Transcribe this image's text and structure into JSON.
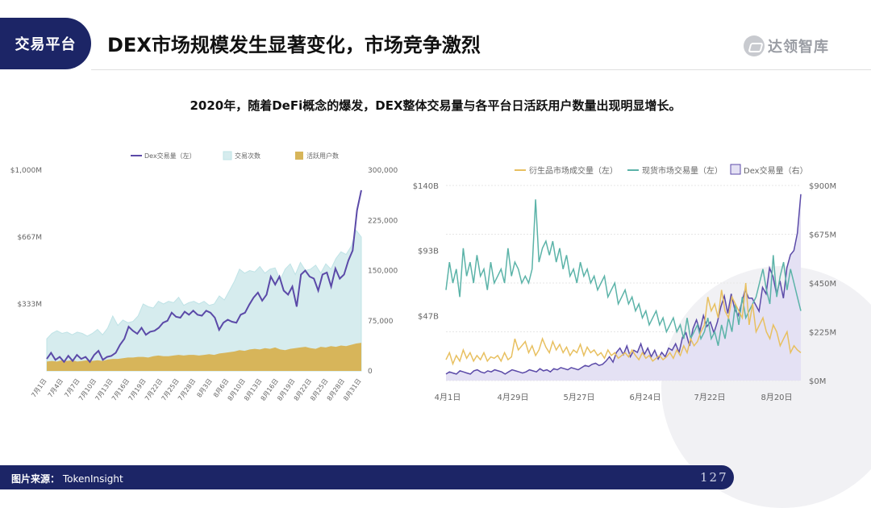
{
  "section_tag": "交易平台",
  "title": "DEX市场规模发生显著变化，市场竞争激烈",
  "logo": {
    "text": "达领智库"
  },
  "subtitle": "2020年，随着DeFi概念的爆发，DEX整体交易量与各平台日活跃用户数量出现明显增长。",
  "footer": {
    "source_label": "图片来源：",
    "source": "TokenInsight",
    "page": "127"
  },
  "colors": {
    "navy": "#1c2566",
    "purple": "#5b4aa8",
    "teal_fill": "#d6ecee",
    "teal_line": "#bfe3e6",
    "gold": "#d7b55a",
    "teal": "#5bb3a8",
    "yellow": "#e8c060",
    "lavender_fill": "#e4e1f4"
  },
  "chart_data": [
    {
      "type": "line",
      "legend": [
        {
          "name": "Dex交易量（左）",
          "kind": "line"
        },
        {
          "name": "交易次数",
          "kind": "box"
        },
        {
          "name": "活跃用户数",
          "kind": "box"
        }
      ],
      "left_ticks": [
        "$1,000M",
        "$667M",
        "$333M"
      ],
      "right_ticks": [
        "300,000",
        "225,000",
        "150,000",
        "75,000",
        "0"
      ],
      "ylim_left": [
        0,
        1000
      ],
      "ylim_right": [
        0,
        300000
      ],
      "x_labels": [
        "7月1日",
        "7月4日",
        "7月7日",
        "7月10日",
        "7月13日",
        "7月16日",
        "7月19日",
        "7月22日",
        "7月25日",
        "7月28日",
        "8月3日",
        "8月6日",
        "8月10日",
        "8月13日",
        "8月16日",
        "8月19日",
        "8月22日",
        "8月25日",
        "8月28日",
        "8月31日"
      ],
      "series": [
        {
          "name": "交易次数",
          "type": "area",
          "axis": "right",
          "values": [
            48000,
            56000,
            60000,
            56000,
            58000,
            54000,
            58000,
            56000,
            52000,
            56000,
            62000,
            54000,
            64000,
            82000,
            68000,
            76000,
            72000,
            74000,
            82000,
            100000,
            96000,
            94000,
            104000,
            100000,
            104000,
            102000,
            110000,
            98000,
            102000,
            104000,
            100000,
            104000,
            98000,
            100000,
            112000,
            106000,
            120000,
            134000,
            152000,
            146000,
            150000,
            148000,
            156000,
            146000,
            152000,
            154000,
            136000,
            152000,
            160000,
            144000,
            162000,
            150000,
            152000,
            158000,
            146000,
            160000,
            152000,
            168000,
            178000,
            174000,
            186000,
            210000,
            200000
          ]
        },
        {
          "name": "活跃用户数",
          "type": "area",
          "axis": "right",
          "values": [
            14000,
            15000,
            14000,
            16000,
            15000,
            16000,
            14000,
            15000,
            16000,
            15000,
            16000,
            15000,
            17000,
            18000,
            18000,
            19000,
            20000,
            20000,
            21000,
            21000,
            20000,
            22000,
            23000,
            22000,
            22000,
            23000,
            24000,
            23000,
            24000,
            24000,
            23000,
            24000,
            25000,
            24000,
            26000,
            27000,
            28000,
            29000,
            31000,
            30000,
            32000,
            33000,
            32000,
            34000,
            33000,
            35000,
            32000,
            31000,
            33000,
            34000,
            35000,
            36000,
            34000,
            33000,
            36000,
            35000,
            37000,
            36000,
            38000,
            37000,
            39000,
            41000,
            42000
          ]
        },
        {
          "name": "Dex交易量（左）",
          "type": "line",
          "axis": "left",
          "values": [
            60,
            90,
            55,
            70,
            45,
            75,
            50,
            80,
            60,
            70,
            45,
            80,
            100,
            55,
            70,
            75,
            90,
            130,
            160,
            220,
            200,
            185,
            215,
            180,
            195,
            200,
            215,
            240,
            250,
            290,
            270,
            265,
            295,
            280,
            300,
            280,
            275,
            300,
            290,
            265,
            205,
            240,
            255,
            245,
            240,
            280,
            290,
            330,
            365,
            390,
            350,
            380,
            470,
            430,
            470,
            400,
            380,
            420,
            320,
            480,
            500,
            470,
            460,
            400,
            480,
            490,
            420,
            510,
            460,
            480,
            550,
            600,
            800,
            900
          ]
        }
      ]
    },
    {
      "type": "line",
      "legend": [
        {
          "name": "衍生品市场成交量（左）",
          "kind": "line"
        },
        {
          "name": "现货市场交易量（左）",
          "kind": "line"
        },
        {
          "name": "Dex交易量（右）",
          "kind": "box"
        }
      ],
      "left_ticks": [
        "$140B",
        "$93B",
        "$47B"
      ],
      "right_ticks": [
        "$900M",
        "$675M",
        "$450M",
        "$225M",
        "$0M"
      ],
      "ylim_left": [
        0,
        140
      ],
      "ylim_right": [
        0,
        900
      ],
      "x_labels": [
        "4月1日",
        "4月29日",
        "5月27日",
        "6月24日",
        "7月22日",
        "8月20日"
      ],
      "series": [
        {
          "name": "Dex交易量（右）",
          "type": "area",
          "axis": "right",
          "values": [
            30,
            40,
            35,
            30,
            45,
            40,
            35,
            30,
            45,
            50,
            40,
            35,
            45,
            40,
            50,
            45,
            40,
            30,
            40,
            50,
            45,
            40,
            35,
            40,
            50,
            45,
            40,
            55,
            45,
            50,
            40,
            55,
            50,
            60,
            55,
            50,
            60,
            55,
            50,
            60,
            70,
            65,
            75,
            80,
            70,
            75,
            90,
            110,
            85,
            130,
            150,
            120,
            160,
            110,
            140,
            130,
            170,
            120,
            150,
            110,
            140,
            100,
            130,
            110,
            150,
            140,
            170,
            130,
            200,
            220,
            160,
            240,
            280,
            230,
            300,
            250,
            270,
            220,
            270,
            340,
            390,
            310,
            400,
            330,
            300,
            360,
            420,
            380,
            380,
            350,
            320,
            430,
            400,
            520,
            480,
            400,
            460,
            380,
            520,
            580,
            600,
            680,
            860
          ]
        },
        {
          "name": "现货市场交易量（左）",
          "type": "line",
          "axis": "left",
          "values": [
            65,
            85,
            70,
            80,
            60,
            95,
            75,
            85,
            70,
            90,
            75,
            80,
            65,
            85,
            70,
            75,
            80,
            70,
            95,
            75,
            85,
            80,
            70,
            75,
            70,
            80,
            130,
            85,
            95,
            100,
            90,
            100,
            85,
            95,
            80,
            90,
            75,
            80,
            70,
            85,
            75,
            80,
            70,
            75,
            65,
            70,
            75,
            60,
            65,
            70,
            55,
            60,
            65,
            55,
            60,
            50,
            55,
            45,
            50,
            40,
            45,
            50,
            40,
            45,
            35,
            40,
            45,
            35,
            40,
            30,
            45,
            30,
            35,
            40,
            30,
            35,
            45,
            30,
            35,
            25,
            40,
            30,
            45,
            35,
            55,
            40,
            60,
            45,
            50,
            55,
            60,
            70,
            80,
            65,
            55,
            90,
            60,
            75,
            85,
            65,
            80,
            70,
            60,
            50
          ]
        },
        {
          "name": "衍生品市场成交量（左）",
          "type": "line",
          "axis": "left",
          "values": [
            15,
            20,
            12,
            18,
            14,
            22,
            16,
            20,
            14,
            18,
            15,
            20,
            14,
            17,
            16,
            18,
            14,
            20,
            15,
            17,
            30,
            22,
            25,
            28,
            20,
            25,
            18,
            22,
            30,
            24,
            20,
            28,
            22,
            26,
            20,
            24,
            18,
            22,
            20,
            26,
            18,
            24,
            20,
            22,
            18,
            20,
            16,
            22,
            18,
            20,
            16,
            18,
            20,
            17,
            22,
            18,
            15,
            20,
            16,
            18,
            14,
            16,
            18,
            15,
            17,
            20,
            16,
            22,
            18,
            25,
            20,
            30,
            25,
            28,
            35,
            40,
            60,
            50,
            55,
            45,
            65,
            50,
            45,
            60,
            55,
            50,
            45,
            70,
            40,
            55,
            35,
            40,
            45,
            35,
            30,
            40,
            35,
            25,
            30,
            35,
            20,
            25,
            22,
            20
          ]
        }
      ]
    }
  ]
}
